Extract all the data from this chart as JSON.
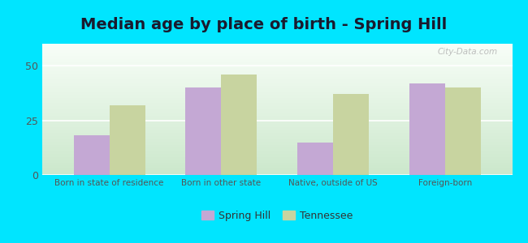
{
  "title": "Median age by place of birth - Spring Hill",
  "categories": [
    "Born in state of residence",
    "Born in other state",
    "Native, outside of US",
    "Foreign-born"
  ],
  "spring_hill_values": [
    18,
    40,
    15,
    42
  ],
  "tennessee_values": [
    32,
    46,
    37,
    40
  ],
  "spring_hill_color": "#c4a8d4",
  "tennessee_color": "#c8d4a0",
  "background_outer": "#00e5ff",
  "ylim": [
    0,
    60
  ],
  "yticks": [
    0,
    25,
    50
  ],
  "legend_labels": [
    "Spring Hill",
    "Tennessee"
  ],
  "bar_width": 0.32,
  "title_fontsize": 14,
  "watermark": "City-Data.com"
}
